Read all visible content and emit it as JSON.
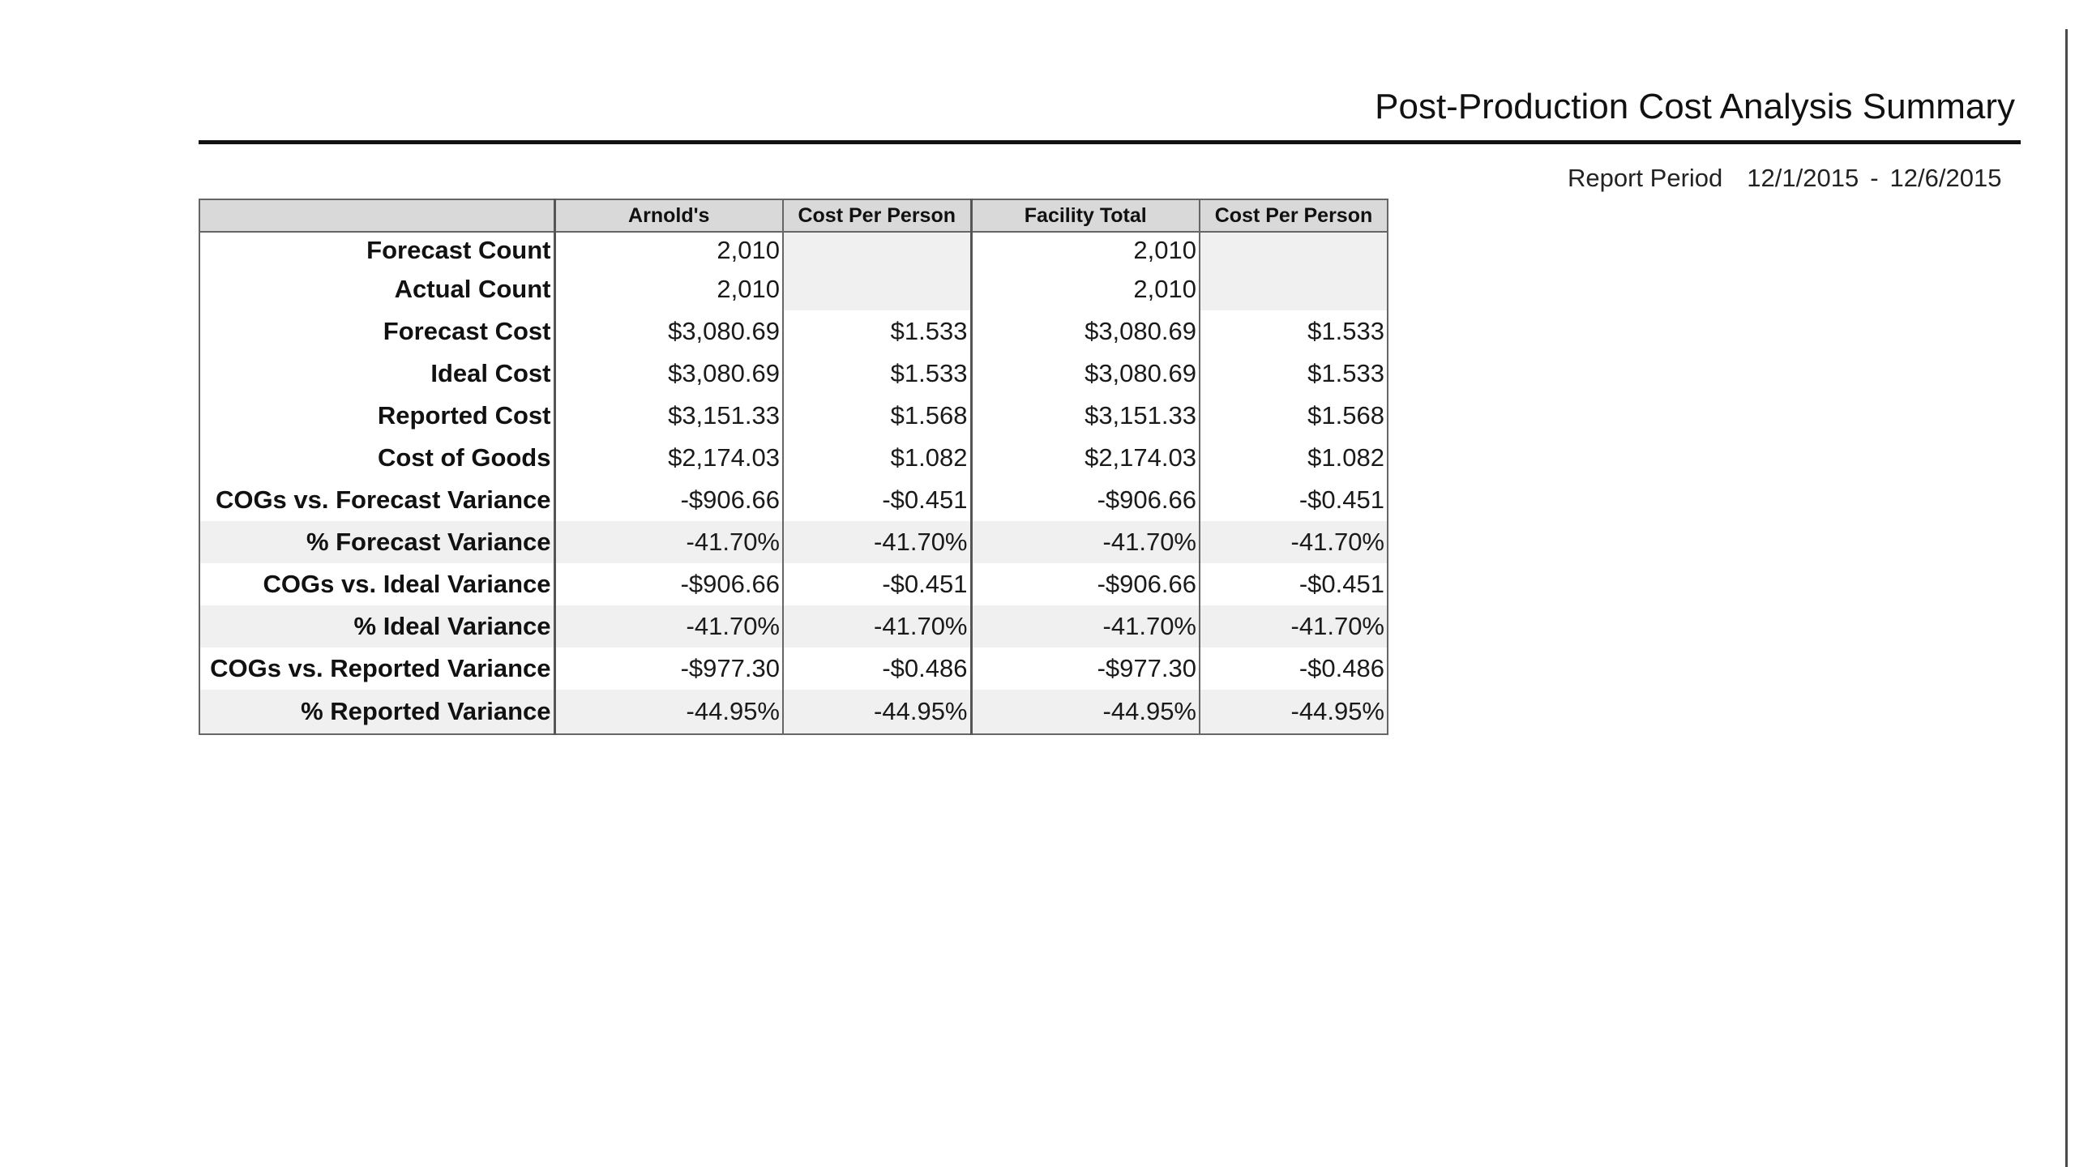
{
  "report": {
    "title": "Post-Production Cost Analysis Summary",
    "period_label": "Report Period",
    "period_start": "12/1/2015",
    "period_separator": "-",
    "period_end": "12/6/2015"
  },
  "table": {
    "headers": [
      "",
      "Arnold's",
      "Cost Per Person",
      "Facility Total",
      "Cost Per Person"
    ],
    "rows": [
      {
        "label": "Forecast Count",
        "values": [
          "2,010",
          "",
          "2,010",
          ""
        ]
      },
      {
        "label": "Actual Count",
        "values": [
          "2,010",
          "",
          "2,010",
          ""
        ]
      },
      {
        "label": "Forecast Cost",
        "values": [
          "$3,080.69",
          "$1.533",
          "$3,080.69",
          "$1.533"
        ]
      },
      {
        "label": "Ideal Cost",
        "values": [
          "$3,080.69",
          "$1.533",
          "$3,080.69",
          "$1.533"
        ]
      },
      {
        "label": "Reported Cost",
        "values": [
          "$3,151.33",
          "$1.568",
          "$3,151.33",
          "$1.568"
        ]
      },
      {
        "label": "Cost of Goods",
        "values": [
          "$2,174.03",
          "$1.082",
          "$2,174.03",
          "$1.082"
        ]
      },
      {
        "label": "COGs vs. Forecast Variance",
        "values": [
          "-$906.66",
          "-$0.451",
          "-$906.66",
          "-$0.451"
        ]
      },
      {
        "label": "% Forecast Variance",
        "values": [
          "-41.70%",
          "-41.70%",
          "-41.70%",
          "-41.70%"
        ]
      },
      {
        "label": "COGs vs. Ideal Variance",
        "values": [
          "-$906.66",
          "-$0.451",
          "-$906.66",
          "-$0.451"
        ]
      },
      {
        "label": "% Ideal Variance",
        "values": [
          "-41.70%",
          "-41.70%",
          "-41.70%",
          "-41.70%"
        ]
      },
      {
        "label": "COGs vs. Reported Variance",
        "values": [
          "-$977.30",
          "-$0.486",
          "-$977.30",
          "-$0.486"
        ]
      },
      {
        "label": "% Reported Variance",
        "values": [
          "-44.95%",
          "-44.95%",
          "-44.95%",
          "-44.95%"
        ]
      }
    ]
  }
}
